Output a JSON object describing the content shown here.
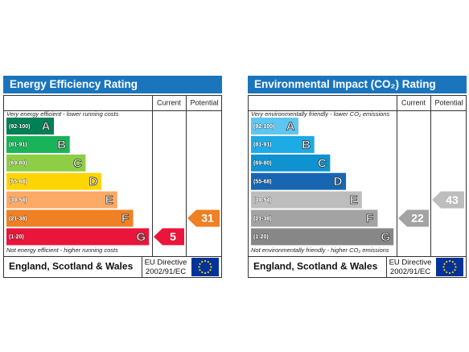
{
  "panels": [
    {
      "title": "Energy Efficiency Rating",
      "columns": [
        "Current",
        "Potential"
      ],
      "top_note": "Very energy efficient - lower running costs",
      "bands": [
        {
          "range": "(92-100)",
          "letter": "A",
          "color": "#008054"
        },
        {
          "range": "(81-91)",
          "letter": "B",
          "color": "#19b459"
        },
        {
          "range": "(69-80)",
          "letter": "C",
          "color": "#8dce46"
        },
        {
          "range": "(55-68)",
          "letter": "D",
          "color": "#ffd500"
        },
        {
          "range": "(39-54)",
          "letter": "E",
          "color": "#fcaa65"
        },
        {
          "range": "(21-38)",
          "letter": "F",
          "color": "#ef8023"
        },
        {
          "range": "(1-20)",
          "letter": "G",
          "color": "#e9153b"
        }
      ],
      "bottom_note": "Not energy efficient - higher running costs",
      "current": 5,
      "potential": 31,
      "footer": {
        "region": "England, Scotland & Wales",
        "directive": "EU Directive",
        "code": "2002/91/EC"
      }
    },
    {
      "title": "Environmental Impact (CO₂) Rating",
      "columns": [
        "Current",
        "Potential"
      ],
      "top_note": "Very environmentally friendly - lower CO₂ emissions",
      "bands": [
        {
          "range": "(92-100)",
          "letter": "A",
          "color": "#5ec6f0"
        },
        {
          "range": "(81-91)",
          "letter": "B",
          "color": "#1eaae4"
        },
        {
          "range": "(69-80)",
          "letter": "C",
          "color": "#0e92d0"
        },
        {
          "range": "(55-68)",
          "letter": "D",
          "color": "#1866b1"
        },
        {
          "range": "(39-54)",
          "letter": "E",
          "color": "#bdbdbd"
        },
        {
          "range": "(21-38)",
          "letter": "F",
          "color": "#a3a3a3"
        },
        {
          "range": "(1-20)",
          "letter": "G",
          "color": "#878787"
        }
      ],
      "bottom_note": "Not environmentally friendly - higher CO₂ emissions",
      "current": 22,
      "potential": 43,
      "footer": {
        "region": "England, Scotland & Wales",
        "directive": "EU Directive",
        "code": "2002/91/EC"
      }
    }
  ]
}
